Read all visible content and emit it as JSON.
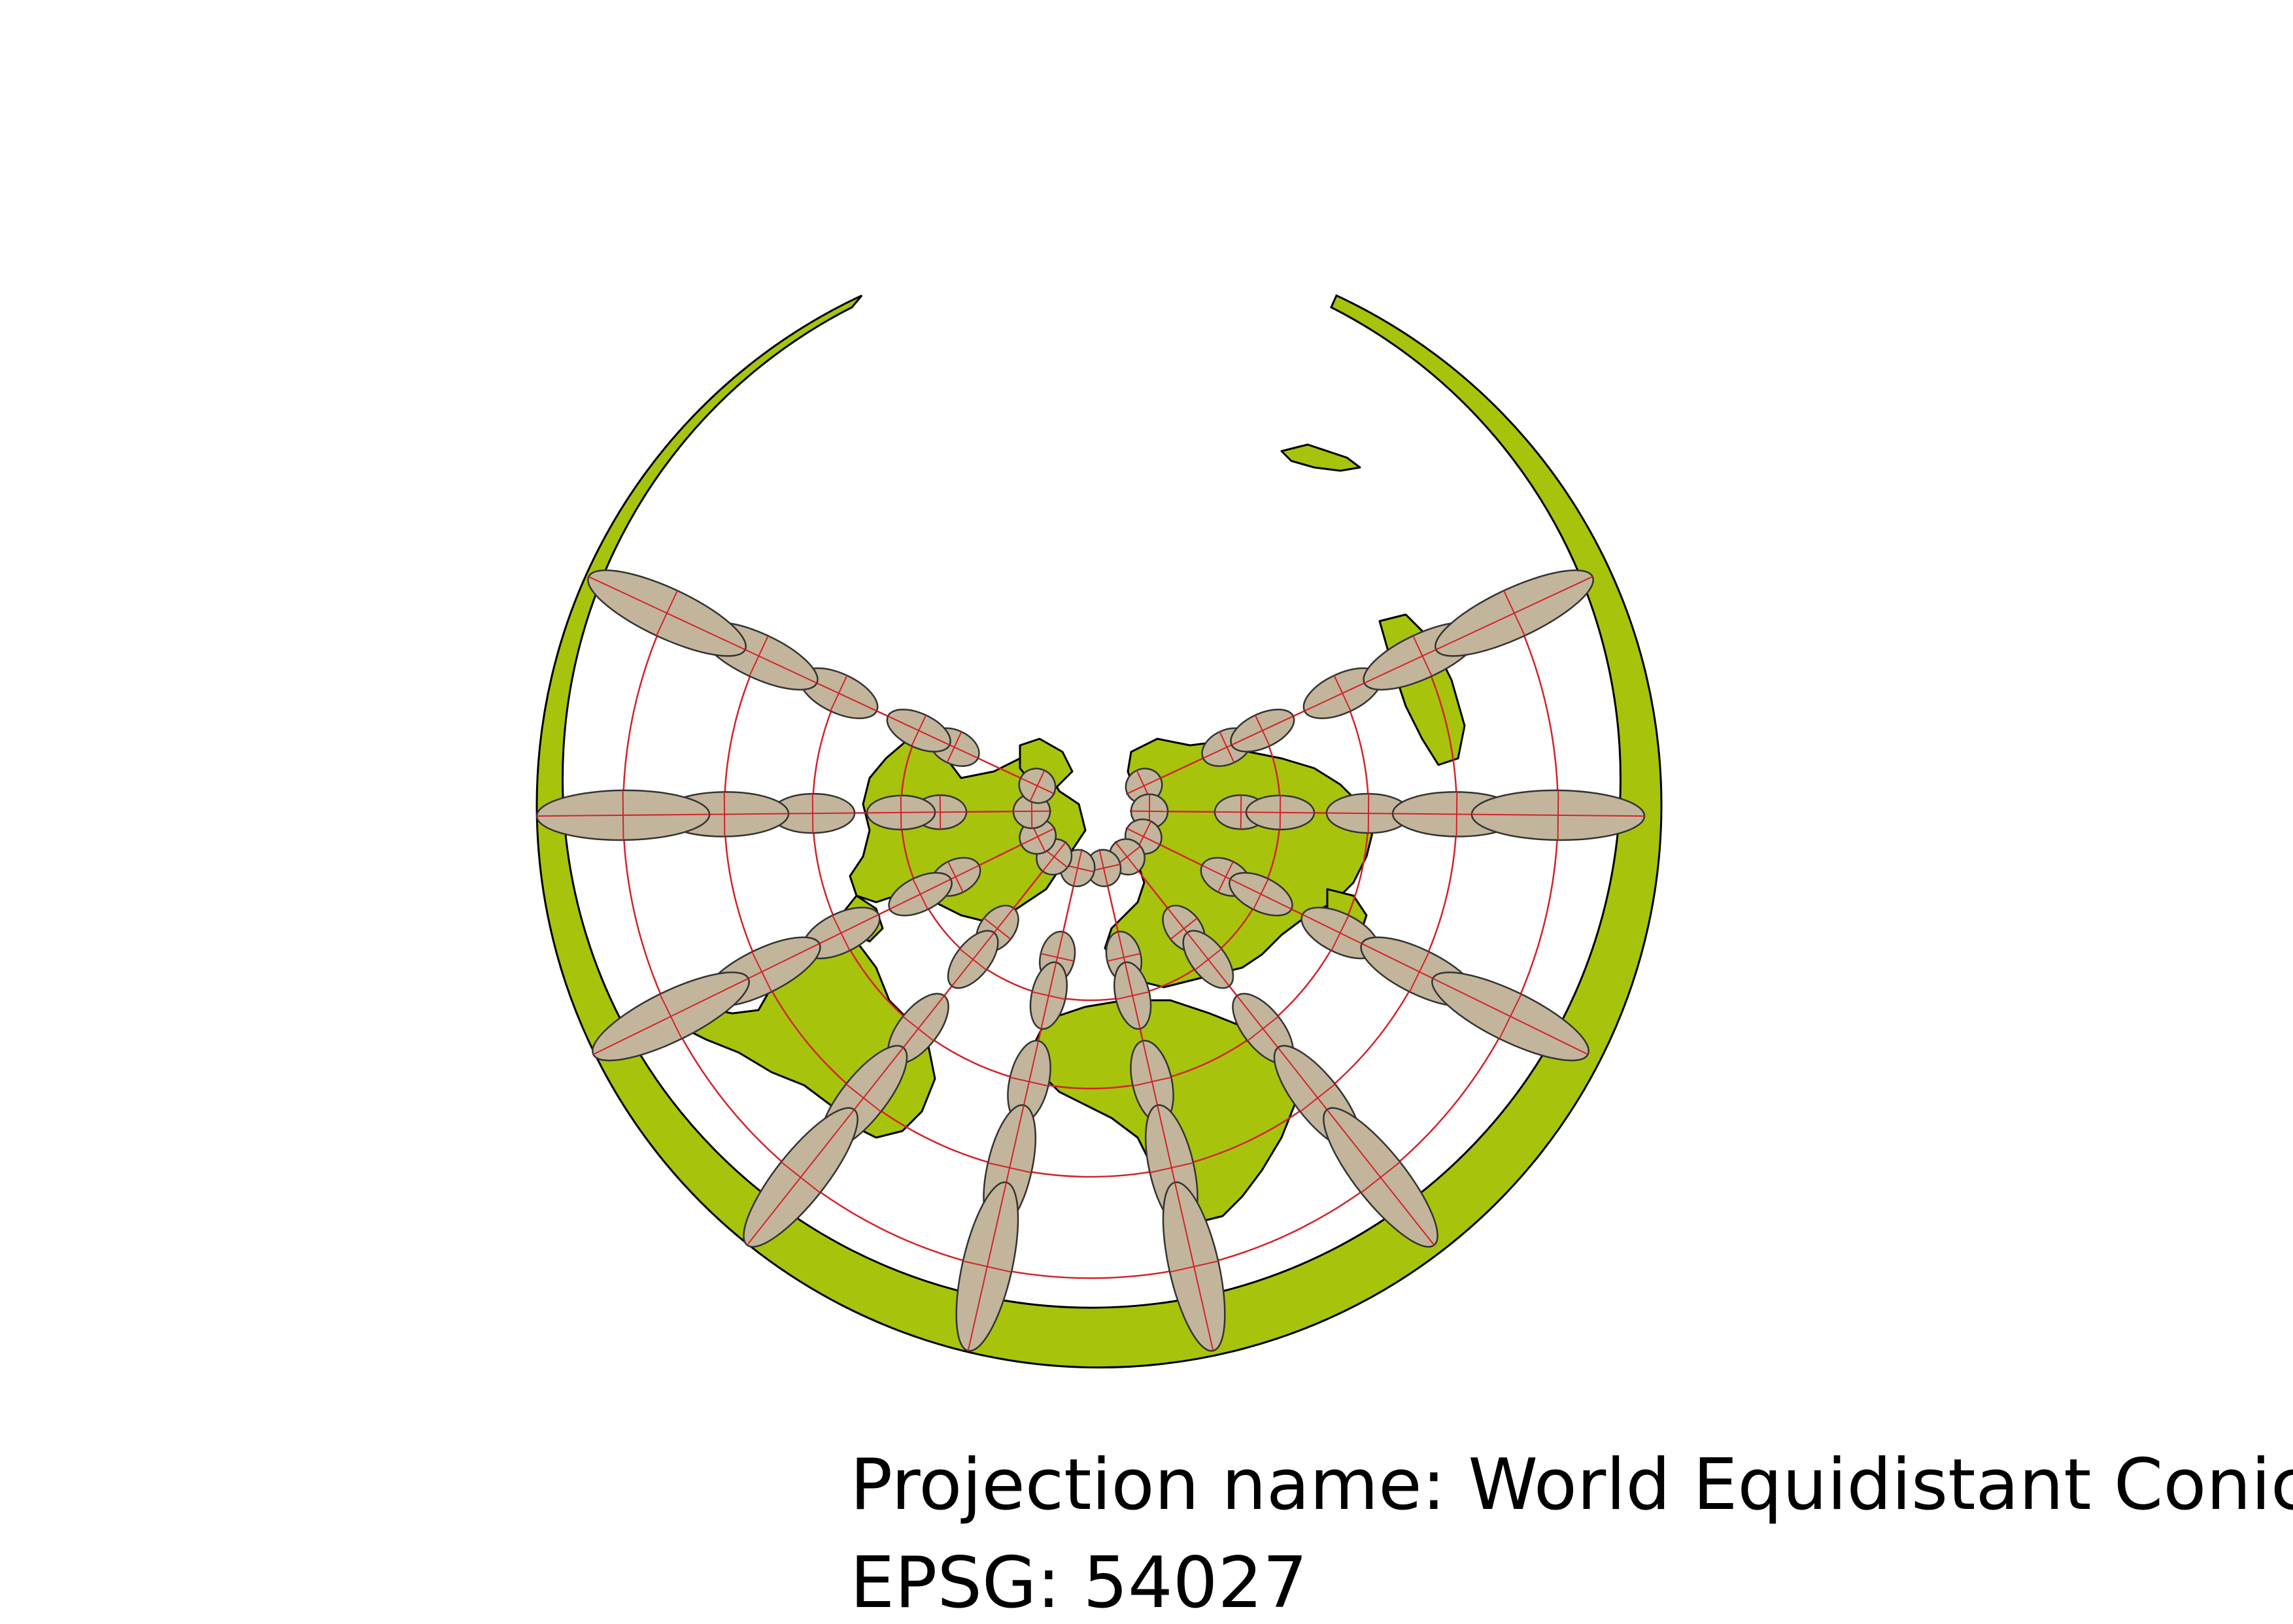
{
  "caption": {
    "projection_line": "Projection name: World Equidistant Conic",
    "epsg_line": "EPSG: 54027"
  },
  "style": {
    "land_color": "#a8c30c",
    "ocean_color": "#ffffff",
    "outline_color": "#000000",
    "ellipse_fill": "#c2b59b",
    "ellipse_stroke": "#333333",
    "graticule_color": "#d2232a"
  },
  "map": {
    "projection": "World Equidistant Conic",
    "features": [
      "land-outline-ring",
      "continents",
      "graticule",
      "tissot-indicatrices"
    ]
  }
}
